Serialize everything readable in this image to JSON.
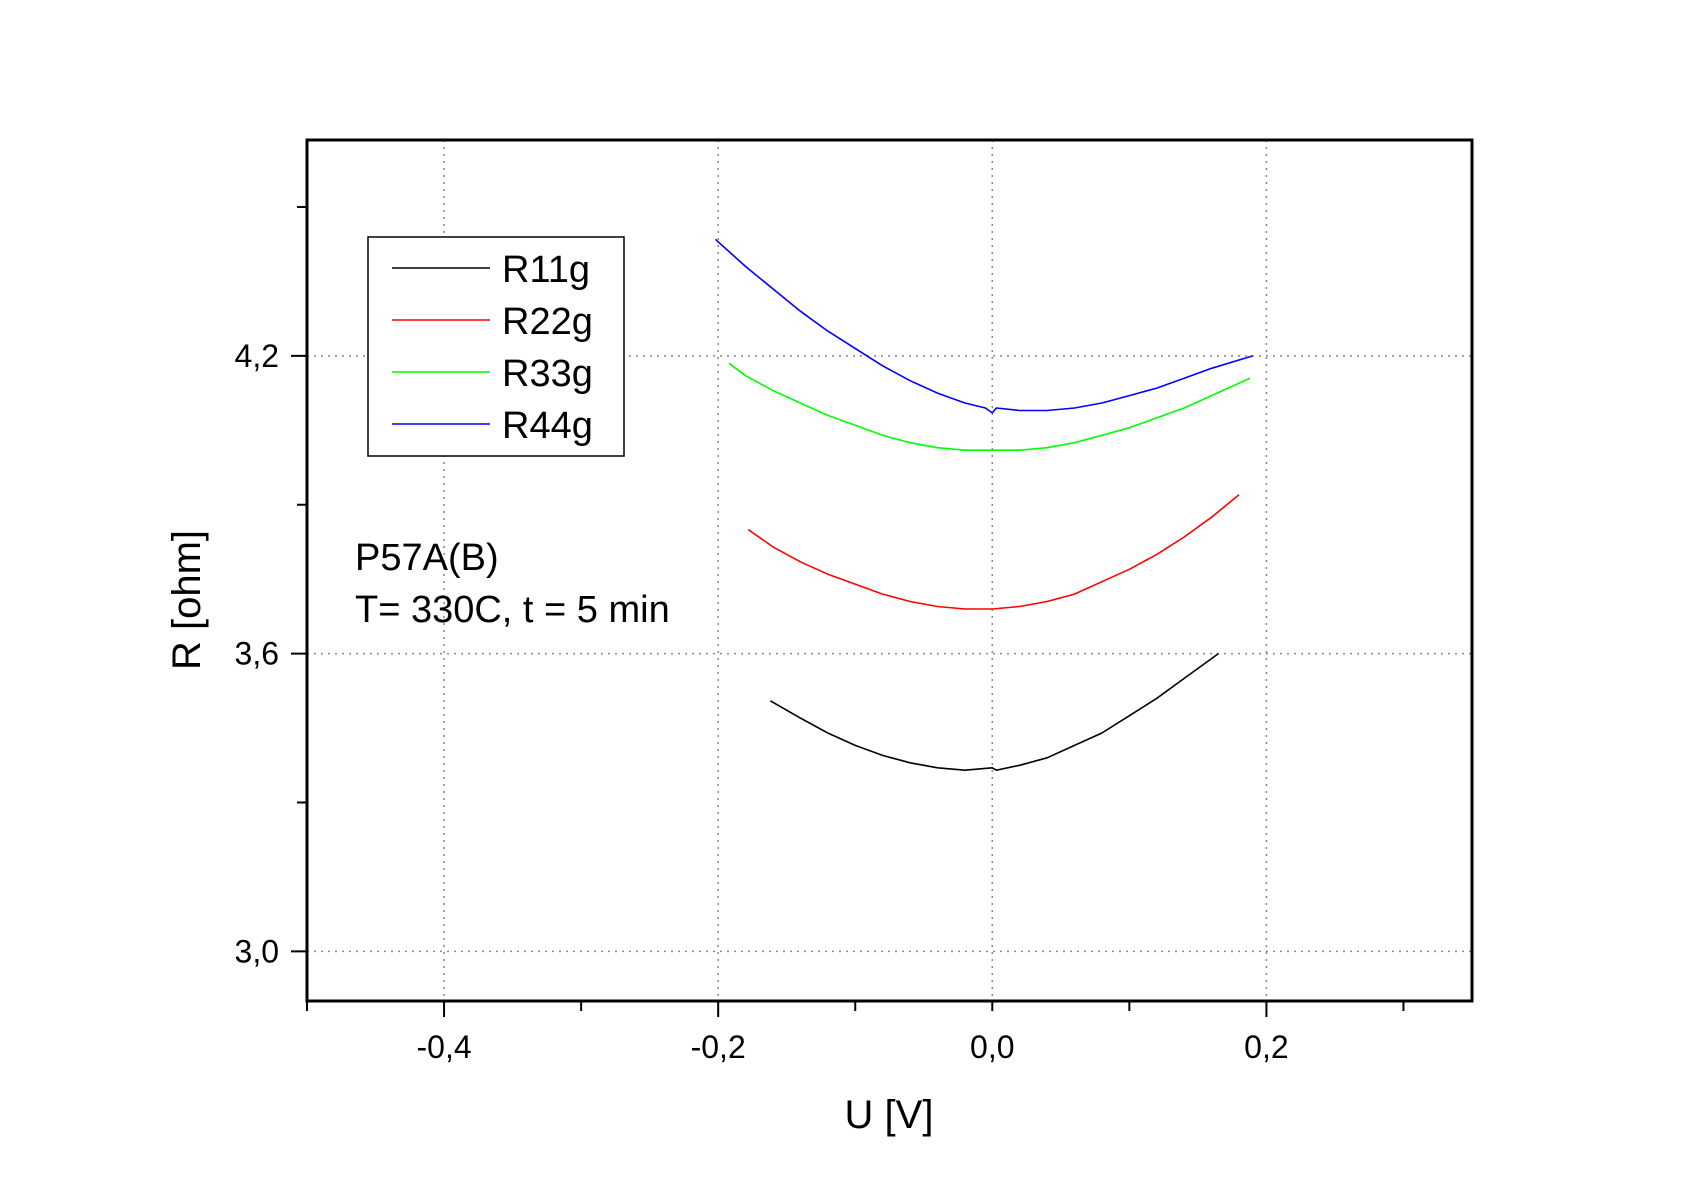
{
  "chart_data": {
    "type": "line",
    "xlabel": "U [V]",
    "ylabel": "R [ohm]",
    "xlim": [
      -0.5,
      0.35
    ],
    "ylim": [
      2.9,
      4.635
    ],
    "xticks": [
      -0.4,
      -0.2,
      0.0,
      0.2
    ],
    "xtick_labels": [
      "-0,4",
      "-0,2",
      "0,0",
      "0,2"
    ],
    "yticks": [
      3.0,
      3.6,
      4.2
    ],
    "ytick_labels": [
      "3,0",
      "3,6",
      "4,2"
    ],
    "grid": true,
    "legend_position": "top-left",
    "annotations": [
      "P57A(B)",
      "T= 330C, t = 5 min"
    ],
    "series": [
      {
        "name": "R11g",
        "color": "#000000",
        "x": [
          -0.162,
          -0.14,
          -0.12,
          -0.1,
          -0.08,
          -0.06,
          -0.04,
          -0.02,
          0.0,
          0.003,
          0.02,
          0.04,
          0.06,
          0.08,
          0.1,
          0.12,
          0.14,
          0.165
        ],
        "y": [
          3.505,
          3.47,
          3.44,
          3.415,
          3.395,
          3.38,
          3.37,
          3.365,
          3.37,
          3.365,
          3.375,
          3.39,
          3.415,
          3.44,
          3.475,
          3.51,
          3.55,
          3.6
        ]
      },
      {
        "name": "R22g",
        "color": "#ff0000",
        "x": [
          -0.178,
          -0.16,
          -0.14,
          -0.12,
          -0.1,
          -0.08,
          -0.06,
          -0.04,
          -0.02,
          0.0,
          0.02,
          0.04,
          0.06,
          0.08,
          0.1,
          0.12,
          0.14,
          0.16,
          0.18
        ],
        "y": [
          3.85,
          3.815,
          3.785,
          3.76,
          3.74,
          3.72,
          3.705,
          3.695,
          3.69,
          3.69,
          3.695,
          3.705,
          3.72,
          3.745,
          3.77,
          3.8,
          3.835,
          3.875,
          3.92
        ]
      },
      {
        "name": "R33g",
        "color": "#00ff00",
        "x": [
          -0.192,
          -0.18,
          -0.16,
          -0.14,
          -0.12,
          -0.1,
          -0.08,
          -0.06,
          -0.04,
          -0.02,
          0.0,
          0.02,
          0.04,
          0.06,
          0.08,
          0.1,
          0.12,
          0.14,
          0.16,
          0.188
        ],
        "y": [
          4.185,
          4.16,
          4.13,
          4.105,
          4.08,
          4.06,
          4.04,
          4.025,
          4.015,
          4.01,
          4.01,
          4.01,
          4.015,
          4.025,
          4.04,
          4.055,
          4.075,
          4.095,
          4.12,
          4.155
        ]
      },
      {
        "name": "R44g",
        "color": "#0000ff",
        "x": [
          -0.202,
          -0.18,
          -0.16,
          -0.14,
          -0.12,
          -0.1,
          -0.08,
          -0.06,
          -0.04,
          -0.02,
          -0.005,
          0.0,
          0.003,
          0.02,
          0.04,
          0.06,
          0.08,
          0.1,
          0.12,
          0.14,
          0.16,
          0.19
        ],
        "y": [
          4.435,
          4.38,
          4.335,
          4.29,
          4.25,
          4.215,
          4.18,
          4.15,
          4.125,
          4.105,
          4.095,
          4.085,
          4.095,
          4.09,
          4.09,
          4.095,
          4.105,
          4.12,
          4.135,
          4.155,
          4.175,
          4.2
        ]
      }
    ]
  }
}
